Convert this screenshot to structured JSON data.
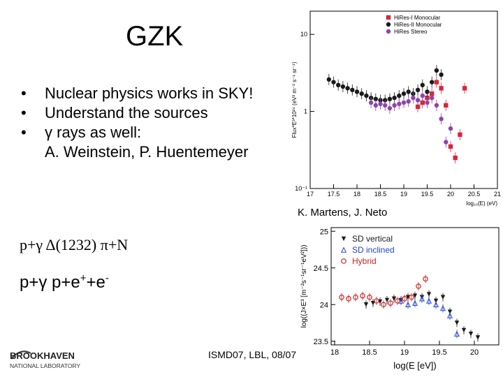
{
  "slide": {
    "title": "GZK",
    "bullets": [
      {
        "text": "Nuclear physics works in SKY!"
      },
      {
        "text": "Understand the sources"
      },
      {
        "text": "γ rays as well:",
        "cont": "A. Weinstein, P. Huentemeyer"
      }
    ],
    "credit": "K. Martens, J. Neto",
    "reaction1": "p+γ  Δ(1232)  π+N",
    "reaction2_base": "p+γ  p+e",
    "reaction2_sup1": "+",
    "reaction2_mid": "+e",
    "reaction2_sup2": "-",
    "footer": "ISMD07, LBL, 08/07",
    "logo_text": "BROOKHAVEN",
    "logo_sub": "NATIONAL LABORATORY"
  },
  "chart_data": [
    {
      "type": "scatter",
      "ylabel": "Flux*E³*10²⁴ (eV² m⁻² s⁻¹ sr⁻¹)",
      "xlabel": "log₁₀(E) (eV)",
      "x_ticks": [
        "17",
        "17.5",
        "18",
        "18.5",
        "19",
        "19.5",
        "20",
        "20.5",
        "21"
      ],
      "y_ticks": [
        "10⁻¹",
        "1",
        "10"
      ],
      "xlim": [
        17,
        21
      ],
      "ylim": [
        0.1,
        20
      ],
      "y_scale": "log",
      "legend_position": "top-right",
      "series": [
        {
          "name": "HiRes-I Monocular",
          "color": "#d7263d",
          "marker": "square",
          "points": [
            [
              19.3,
              1.15
            ],
            [
              19.4,
              1.3
            ],
            [
              19.5,
              1.5
            ],
            [
              19.6,
              1.7
            ],
            [
              19.7,
              2.4
            ],
            [
              19.8,
              2.0
            ],
            [
              19.9,
              1.2
            ],
            [
              20.0,
              0.35
            ],
            [
              20.1,
              0.25
            ],
            [
              20.2,
              0.5
            ],
            [
              20.3,
              2.0
            ]
          ]
        },
        {
          "name": "HiRes-II Monocular",
          "color": "#1a1a1a",
          "marker": "circle",
          "points": [
            [
              17.4,
              2.6
            ],
            [
              17.5,
              2.4
            ],
            [
              17.6,
              2.2
            ],
            [
              17.7,
              2.1
            ],
            [
              17.8,
              2.0
            ],
            [
              17.9,
              1.9
            ],
            [
              18.0,
              1.8
            ],
            [
              18.1,
              1.7
            ],
            [
              18.2,
              1.6
            ],
            [
              18.3,
              1.5
            ],
            [
              18.4,
              1.45
            ],
            [
              18.5,
              1.4
            ],
            [
              18.6,
              1.4
            ],
            [
              18.7,
              1.45
            ],
            [
              18.8,
              1.5
            ],
            [
              18.9,
              1.6
            ],
            [
              19.0,
              1.7
            ],
            [
              19.1,
              1.8
            ],
            [
              19.2,
              1.7
            ],
            [
              19.3,
              1.9
            ],
            [
              19.4,
              2.2
            ],
            [
              19.5,
              1.8
            ],
            [
              19.6,
              2.4
            ],
            [
              19.7,
              3.4
            ],
            [
              19.8,
              3.0
            ]
          ]
        },
        {
          "name": "HiRes Stereo",
          "color": "#8e44ad",
          "marker": "circle",
          "points": [
            [
              18.3,
              1.3
            ],
            [
              18.4,
              1.2
            ],
            [
              18.5,
              1.25
            ],
            [
              18.6,
              1.2
            ],
            [
              18.7,
              1.1
            ],
            [
              18.8,
              1.2
            ],
            [
              18.9,
              1.25
            ],
            [
              19.0,
              1.3
            ],
            [
              19.1,
              1.35
            ],
            [
              19.2,
              1.5
            ],
            [
              19.3,
              1.4
            ],
            [
              19.4,
              1.6
            ],
            [
              19.5,
              1.3
            ],
            [
              19.6,
              1.5
            ],
            [
              19.7,
              1.2
            ],
            [
              19.8,
              0.8
            ],
            [
              19.9,
              0.4
            ],
            [
              20.0,
              0.6
            ]
          ]
        }
      ]
    },
    {
      "type": "scatter",
      "ylabel": "log((J×E³ [m⁻²s⁻¹sr⁻¹eV²]))",
      "xlabel": "log(E [eV])",
      "x_ticks": [
        "18",
        "18.5",
        "19",
        "19.5",
        "20"
      ],
      "y_ticks": [
        "23.5",
        "24",
        "24.5",
        "25"
      ],
      "xlim": [
        17.95,
        20.35
      ],
      "ylim": [
        23.45,
        25.05
      ],
      "legend_position": "top-left",
      "series": [
        {
          "name": "SD vertical",
          "color": "#1a1a1a",
          "marker": "triangle-down",
          "points": [
            [
              18.45,
              24.0
            ],
            [
              18.55,
              24.02
            ],
            [
              18.65,
              24.04
            ],
            [
              18.75,
              24.06
            ],
            [
              18.85,
              24.08
            ],
            [
              18.95,
              24.06
            ],
            [
              19.05,
              24.1
            ],
            [
              19.15,
              24.12
            ],
            [
              19.25,
              24.1
            ],
            [
              19.35,
              24.14
            ],
            [
              19.45,
              24.05
            ],
            [
              19.55,
              24.1
            ],
            [
              19.65,
              23.9
            ],
            [
              19.75,
              23.75
            ],
            [
              19.85,
              23.65
            ],
            [
              19.95,
              23.6
            ],
            [
              20.05,
              23.55
            ]
          ]
        },
        {
          "name": "SD inclined",
          "color": "#2244cc",
          "marker": "triangle-up",
          "points": [
            [
              18.95,
              24.05
            ],
            [
              19.05,
              24.0
            ],
            [
              19.15,
              24.02
            ],
            [
              19.25,
              24.08
            ],
            [
              19.35,
              24.05
            ],
            [
              19.45,
              24.0
            ],
            [
              19.55,
              23.95
            ],
            [
              19.65,
              23.85
            ],
            [
              19.75,
              23.6
            ]
          ]
        },
        {
          "name": "Hybrid",
          "color": "#cc2222",
          "marker": "circle-open",
          "points": [
            [
              18.1,
              24.1
            ],
            [
              18.2,
              24.08
            ],
            [
              18.3,
              24.1
            ],
            [
              18.4,
              24.12
            ],
            [
              18.5,
              24.1
            ],
            [
              18.6,
              24.05
            ],
            [
              18.7,
              24.0
            ],
            [
              18.8,
              24.02
            ],
            [
              18.9,
              24.05
            ],
            [
              19.0,
              24.08
            ],
            [
              19.1,
              24.1
            ],
            [
              19.2,
              24.25
            ],
            [
              19.3,
              24.35
            ]
          ]
        }
      ]
    }
  ]
}
